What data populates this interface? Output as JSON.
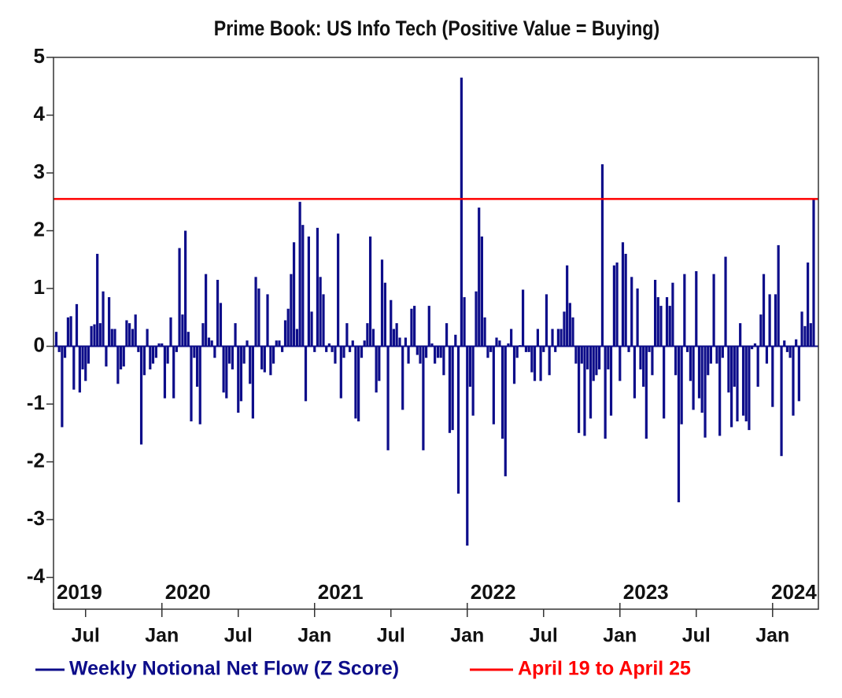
{
  "chart_data": {
    "type": "bar",
    "title": "Prime Book: US Info Tech (Positive Value = Buying)",
    "x": [
      2019.308,
      2019.327,
      2019.346,
      2019.365,
      2019.385,
      2019.404,
      2019.423,
      2019.442,
      2019.462,
      2019.481,
      2019.5,
      2019.519,
      2019.538,
      2019.558,
      2019.577,
      2019.596,
      2019.615,
      2019.635,
      2019.654,
      2019.673,
      2019.692,
      2019.712,
      2019.731,
      2019.75,
      2019.769,
      2019.788,
      2019.808,
      2019.827,
      2019.846,
      2019.865,
      2019.885,
      2019.904,
      2019.923,
      2019.942,
      2019.962,
      2019.981,
      2020.0,
      2020.019,
      2020.038,
      2020.058,
      2020.077,
      2020.096,
      2020.115,
      2020.135,
      2020.154,
      2020.173,
      2020.192,
      2020.212,
      2020.231,
      2020.25,
      2020.269,
      2020.288,
      2020.308,
      2020.327,
      2020.346,
      2020.365,
      2020.385,
      2020.404,
      2020.423,
      2020.442,
      2020.462,
      2020.481,
      2020.5,
      2020.519,
      2020.538,
      2020.558,
      2020.577,
      2020.596,
      2020.615,
      2020.635,
      2020.654,
      2020.673,
      2020.692,
      2020.712,
      2020.731,
      2020.75,
      2020.769,
      2020.788,
      2020.808,
      2020.827,
      2020.846,
      2020.865,
      2020.885,
      2020.904,
      2020.923,
      2020.942,
      2020.962,
      2020.981,
      2021.0,
      2021.019,
      2021.038,
      2021.058,
      2021.077,
      2021.096,
      2021.115,
      2021.135,
      2021.154,
      2021.173,
      2021.192,
      2021.212,
      2021.231,
      2021.25,
      2021.269,
      2021.288,
      2021.308,
      2021.327,
      2021.346,
      2021.365,
      2021.385,
      2021.404,
      2021.423,
      2021.442,
      2021.462,
      2021.481,
      2021.5,
      2021.519,
      2021.538,
      2021.558,
      2021.577,
      2021.596,
      2021.615,
      2021.635,
      2021.654,
      2021.673,
      2021.692,
      2021.712,
      2021.731,
      2021.75,
      2021.769,
      2021.788,
      2021.808,
      2021.827,
      2021.846,
      2021.865,
      2021.885,
      2021.904,
      2021.923,
      2021.942,
      2021.962,
      2021.981,
      2022.0,
      2022.019,
      2022.038,
      2022.058,
      2022.077,
      2022.096,
      2022.115,
      2022.135,
      2022.154,
      2022.173,
      2022.192,
      2022.212,
      2022.231,
      2022.25,
      2022.269,
      2022.288,
      2022.308,
      2022.327,
      2022.346,
      2022.365,
      2022.385,
      2022.404,
      2022.423,
      2022.442,
      2022.462,
      2022.481,
      2022.5,
      2022.519,
      2022.538,
      2022.558,
      2022.577,
      2022.596,
      2022.615,
      2022.635,
      2022.654,
      2022.673,
      2022.692,
      2022.712,
      2022.731,
      2022.75,
      2022.769,
      2022.788,
      2022.808,
      2022.827,
      2022.846,
      2022.865,
      2022.885,
      2022.904,
      2022.923,
      2022.942,
      2022.962,
      2022.981,
      2023.0,
      2023.019,
      2023.038,
      2023.058,
      2023.077,
      2023.096,
      2023.115,
      2023.135,
      2023.154,
      2023.173,
      2023.192,
      2023.212,
      2023.231,
      2023.25,
      2023.269,
      2023.288,
      2023.308,
      2023.327,
      2023.346,
      2023.365,
      2023.385,
      2023.404,
      2023.423,
      2023.442,
      2023.462,
      2023.481,
      2023.5,
      2023.519,
      2023.538,
      2023.558,
      2023.577,
      2023.596,
      2023.615,
      2023.635,
      2023.654,
      2023.673,
      2023.692,
      2023.712,
      2023.731,
      2023.75,
      2023.769,
      2023.788,
      2023.808,
      2023.827,
      2023.846,
      2023.865,
      2023.885,
      2023.904,
      2023.923,
      2023.942,
      2023.962,
      2023.981,
      2024.0,
      2024.019,
      2024.038,
      2024.058,
      2024.077,
      2024.096,
      2024.115,
      2024.135,
      2024.154,
      2024.173,
      2024.192,
      2024.212,
      2024.231,
      2024.25,
      2024.269
    ],
    "series": [
      {
        "name": "Weekly Notional Net Flow (Z Score)",
        "color": "#0d0d8a",
        "values": [
          0.25,
          -0.1,
          -1.4,
          -0.2,
          0.5,
          0.52,
          -0.75,
          0.73,
          -0.8,
          -0.4,
          -0.6,
          -0.3,
          0.35,
          0.38,
          1.6,
          0.4,
          0.95,
          -0.35,
          0.85,
          0.3,
          0.3,
          -0.65,
          -0.4,
          -0.35,
          0.45,
          0.4,
          0.3,
          0.55,
          -0.1,
          -1.7,
          -0.5,
          0.3,
          -0.4,
          -0.3,
          -0.2,
          0.05,
          0.05,
          -0.9,
          -0.3,
          0.5,
          -0.9,
          -0.1,
          1.7,
          0.55,
          2.0,
          0.25,
          -1.3,
          -0.2,
          -0.7,
          -1.35,
          0.4,
          1.25,
          0.15,
          0.1,
          -0.2,
          1.15,
          0.75,
          -0.8,
          -0.9,
          -0.3,
          -0.4,
          0.4,
          -1.15,
          -0.95,
          -0.3,
          0.1,
          -0.65,
          -1.25,
          1.2,
          1.0,
          -0.4,
          -0.45,
          0.9,
          -0.5,
          -0.3,
          0.1,
          0.1,
          -0.1,
          0.45,
          0.65,
          1.25,
          1.8,
          0.3,
          2.5,
          2.1,
          -0.95,
          1.9,
          0.6,
          -0.1,
          2.05,
          1.2,
          0.9,
          -0.1,
          0.05,
          -0.1,
          -0.3,
          1.95,
          -0.9,
          -0.2,
          0.4,
          -0.1,
          0.1,
          -1.25,
          -1.3,
          -0.2,
          0.1,
          0.4,
          1.9,
          0.3,
          -0.8,
          -0.6,
          1.5,
          1.1,
          -1.8,
          0.8,
          0.3,
          0.4,
          0.15,
          -1.1,
          0.15,
          -0.3,
          0.65,
          0.7,
          -0.15,
          -0.3,
          -1.8,
          -0.2,
          0.7,
          0.05,
          -0.3,
          -0.2,
          -0.2,
          -0.5,
          0.4,
          -1.5,
          -1.45,
          0.2,
          -2.55,
          4.65,
          0.85,
          -3.45,
          -0.7,
          -1.2,
          0.95,
          2.4,
          1.9,
          0.5,
          -0.2,
          -0.1,
          -1.35,
          0.15,
          0.1,
          -1.6,
          -2.25,
          0.05,
          0.3,
          -0.65,
          -0.2,
          0.02,
          0.98,
          -0.1,
          -0.1,
          -0.45,
          -0.6,
          0.3,
          -0.6,
          -0.1,
          0.9,
          -0.5,
          0.3,
          -0.1,
          0.3,
          0.3,
          0.6,
          1.4,
          0.75,
          0.5,
          -0.3,
          -1.5,
          -0.3,
          -1.55,
          -0.4,
          -1.25,
          -0.6,
          -0.5,
          -0.4,
          3.15,
          -1.6,
          -0.4,
          -1.2,
          1.4,
          1.45,
          -0.6,
          1.8,
          1.6,
          -0.1,
          1.2,
          -0.9,
          1.0,
          -0.4,
          -0.7,
          -1.6,
          -0.1,
          -0.5,
          1.15,
          0.85,
          0.7,
          -1.25,
          0.85,
          0.7,
          1.1,
          -0.5,
          -2.7,
          -1.35,
          1.25,
          -0.1,
          -0.6,
          -1.1,
          1.3,
          -0.9,
          -1.15,
          -1.58,
          -0.5,
          -0.3,
          1.25,
          -0.3,
          -1.55,
          -0.2,
          1.55,
          -0.8,
          -1.4,
          -0.7,
          -1.3,
          0.4,
          -1.2,
          -1.3,
          -1.45,
          -0.05,
          0.05,
          -0.7,
          0.55,
          1.25,
          -0.3,
          0.9,
          -1.05,
          0.9,
          1.75,
          -1.9,
          0.1,
          -0.1,
          -0.2,
          -1.2,
          0.12,
          -0.95,
          0.6,
          0.35,
          1.45,
          0.4,
          2.55
        ]
      }
    ],
    "reference_line": {
      "name": "April 19 to April 25",
      "value": 2.55,
      "color": "#ff0000"
    },
    "xlim": [
      2019.29,
      2024.3
    ],
    "ylim": [
      -4.55,
      5
    ],
    "yticks": [
      -4,
      -3,
      -2,
      -1,
      0,
      1,
      2,
      3,
      4,
      5
    ],
    "xticks": [
      {
        "value": 2019.5,
        "label": "Jul"
      },
      {
        "value": 2020,
        "label": "Jan"
      },
      {
        "value": 2020.5,
        "label": "Jul"
      },
      {
        "value": 2021,
        "label": "Jan"
      },
      {
        "value": 2021.5,
        "label": "Jul"
      },
      {
        "value": 2022,
        "label": "Jan"
      },
      {
        "value": 2022.5,
        "label": "Jul"
      },
      {
        "value": 2023,
        "label": "Jan"
      },
      {
        "value": 2023.5,
        "label": "Jul"
      },
      {
        "value": 2024,
        "label": "Jan"
      }
    ],
    "year_ticks": [
      2019,
      2020,
      2021,
      2022,
      2023,
      2024
    ]
  }
}
